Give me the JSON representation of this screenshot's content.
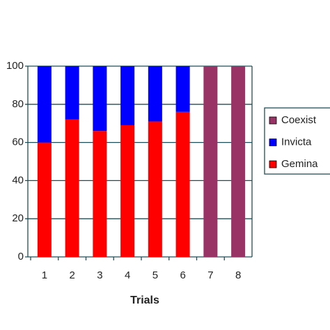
{
  "chart_data": {
    "type": "stacked_bar",
    "x_label": "Trials",
    "categories": [
      "1",
      "2",
      "3",
      "4",
      "5",
      "6",
      "7",
      "8"
    ],
    "series": [
      {
        "name": "Gemina",
        "color": "#ff0000",
        "values": [
          60,
          72,
          66,
          69,
          71,
          76,
          0,
          0
        ]
      },
      {
        "name": "Invicta",
        "color": "#0000ff",
        "values": [
          40,
          28,
          34,
          31,
          29,
          24,
          0,
          0
        ]
      },
      {
        "name": "Coexist",
        "color": "#993366",
        "values": [
          0,
          0,
          0,
          0,
          0,
          0,
          100,
          100
        ]
      }
    ],
    "ylim": [
      0,
      100
    ],
    "yticks": [
      0,
      20,
      40,
      60,
      80,
      100
    ],
    "grid": true
  }
}
